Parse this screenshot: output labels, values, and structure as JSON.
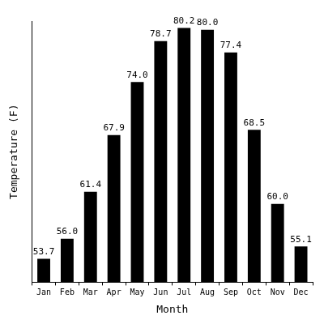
{
  "chart_data": {
    "type": "bar",
    "x_label": "Month",
    "y_label": "Temperature (F)",
    "categories": [
      "Jan",
      "Feb",
      "Mar",
      "Apr",
      "May",
      "Jun",
      "Jul",
      "Aug",
      "Sep",
      "Oct",
      "Nov",
      "Dec"
    ],
    "values": [
      53.7,
      56.0,
      61.4,
      67.9,
      74.0,
      78.7,
      80.2,
      80.0,
      77.4,
      68.5,
      60.0,
      55.1
    ],
    "value_labels": [
      "53.7",
      "56.0",
      "61.4",
      "67.9",
      "74.0",
      "78.7",
      "80.2",
      "80.0",
      "77.4",
      "68.5",
      "60.0",
      "55.1"
    ],
    "color": "#000000",
    "ylim": [
      51,
      81
    ],
    "grid": false,
    "data_labels": true,
    "tick_labels": "x"
  }
}
